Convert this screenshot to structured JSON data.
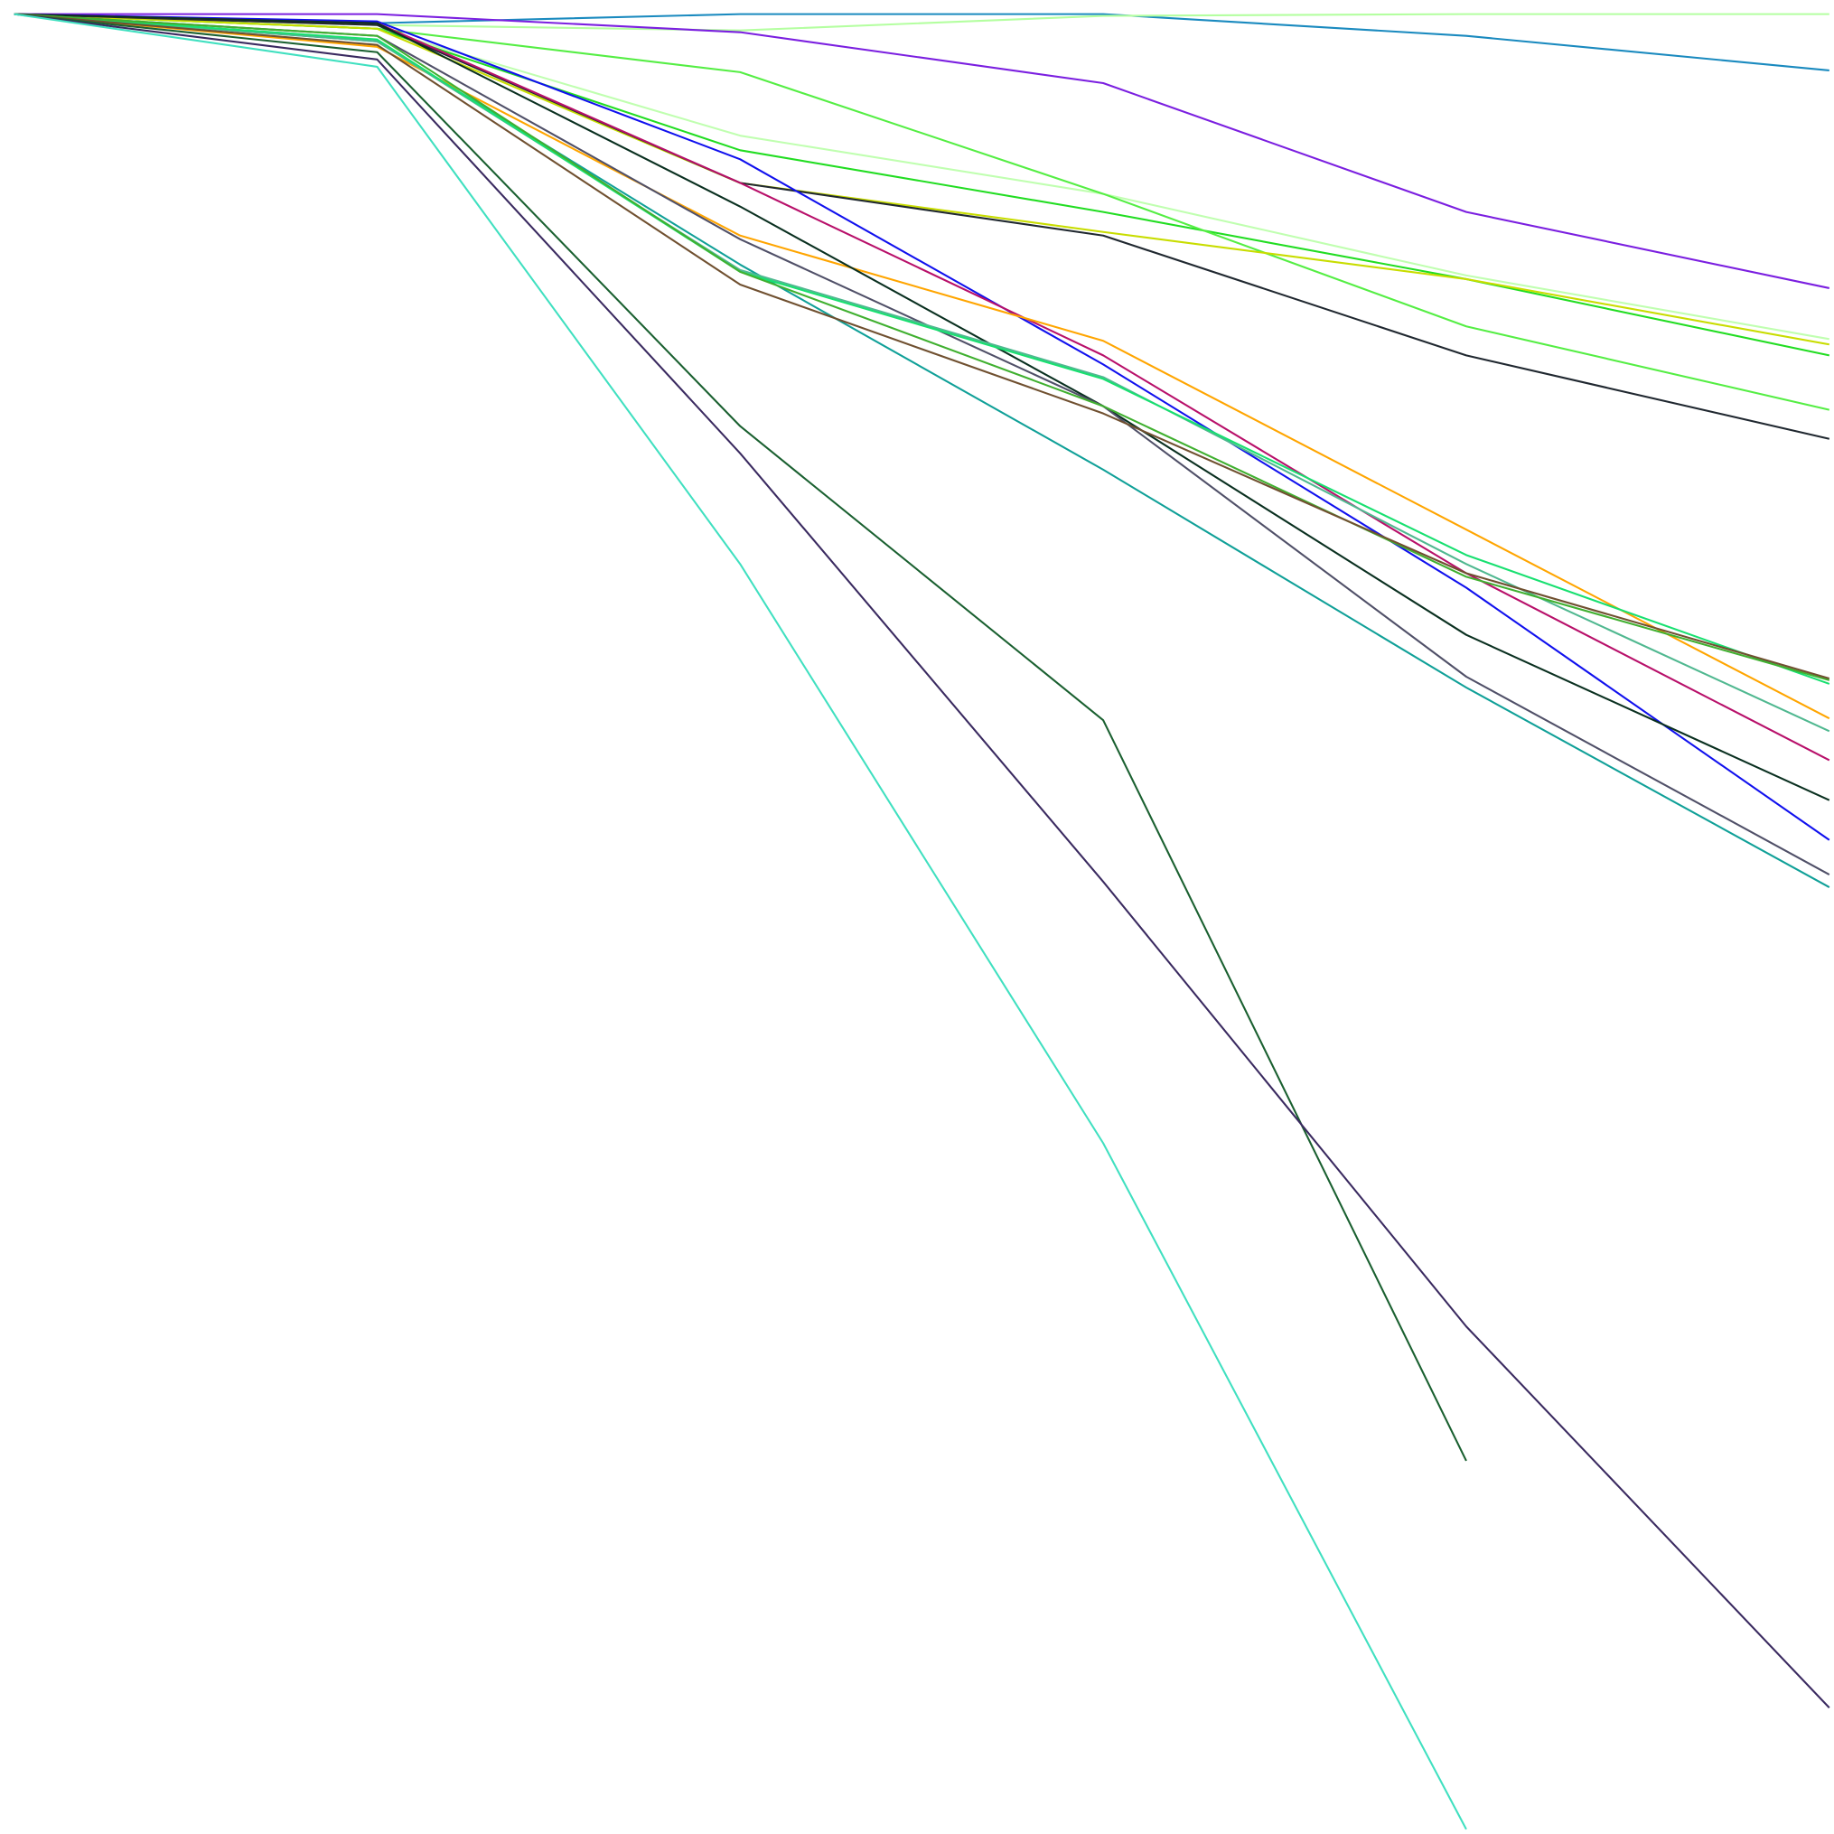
{
  "chart_data": {
    "type": "line",
    "title": "",
    "xlabel": "",
    "ylabel": "",
    "x": [
      0,
      1,
      2,
      3,
      4,
      5
    ],
    "ylim": [
      -100,
      0
    ],
    "grid": false,
    "axes_visible": false,
    "legend": "none",
    "series": [
      {
        "color": "#1a8abf",
        "values": [
          0,
          -0.5,
          0,
          0,
          -1.2,
          -3.1
        ]
      },
      {
        "color": "#b4ffa0",
        "values": [
          0,
          -0.6,
          -0.9,
          -0.1,
          0,
          0
        ]
      },
      {
        "color": "#7b1fe0",
        "values": [
          0,
          0,
          -1.0,
          -3.8,
          -10.9,
          -15.1
        ]
      },
      {
        "color": "#c0ffb0",
        "values": [
          0,
          -0.8,
          -6.7,
          -9.9,
          -14.4,
          -17.9
        ]
      },
      {
        "color": "#22dd22",
        "values": [
          0,
          -0.8,
          -7.5,
          -10.9,
          -14.6,
          -18.8
        ]
      },
      {
        "color": "#55ee44",
        "values": [
          0,
          -0.8,
          -3.2,
          -9.9,
          -17.2,
          -21.8
        ]
      },
      {
        "color": "#c8dd00",
        "values": [
          0,
          -0.8,
          -9.3,
          -12.0,
          -14.6,
          -18.2
        ]
      },
      {
        "color": "#202830",
        "values": [
          0,
          -0.6,
          -9.3,
          -12.2,
          -18.8,
          -23.4
        ]
      },
      {
        "color": "#1010ee",
        "values": [
          0,
          -0.4,
          -8.0,
          -19.3,
          -31.6,
          -45.5
        ]
      },
      {
        "color": "#b8106a",
        "values": [
          0,
          -0.5,
          -9.3,
          -18.8,
          -30.8,
          -41.1
        ]
      },
      {
        "color": "#ffa500",
        "values": [
          0,
          -1.8,
          -12.2,
          -18.0,
          -28.4,
          -38.8
        ]
      },
      {
        "color": "#0a3020",
        "values": [
          0,
          -0.5,
          -10.6,
          -21.6,
          -34.2,
          -43.3
        ]
      },
      {
        "color": "#505068",
        "values": [
          0,
          -1.2,
          -12.4,
          -21.6,
          -36.5,
          -47.4
        ]
      },
      {
        "color": "#10a098",
        "values": [
          0,
          -1.5,
          -13.8,
          -25.1,
          -37.1,
          -48.1
        ]
      },
      {
        "color": "#50b890",
        "values": [
          0,
          -1.5,
          -14.1,
          -20.0,
          -30.3,
          -39.5
        ]
      },
      {
        "color": "#18e070",
        "values": [
          0,
          -1.4,
          -14.2,
          -20.1,
          -29.8,
          -36.9
        ]
      },
      {
        "color": "#40b030",
        "values": [
          0,
          -1.2,
          -14.2,
          -21.6,
          -31.0,
          -36.7
        ]
      },
      {
        "color": "#705030",
        "values": [
          0,
          -1.7,
          -14.9,
          -22.0,
          -30.8,
          -36.6
        ]
      },
      {
        "color": "#1a6030",
        "values": [
          0,
          -2.1,
          -22.7,
          -38.9,
          -79.7,
          null
        ]
      },
      {
        "color": "#3a2a60",
        "values": [
          0,
          -2.5,
          -24.2,
          -47.8,
          -72.3,
          -93.3
        ]
      },
      {
        "color": "#40e0c0",
        "values": [
          0,
          -2.9,
          -30.3,
          -62.2,
          -100,
          null
        ]
      }
    ]
  }
}
